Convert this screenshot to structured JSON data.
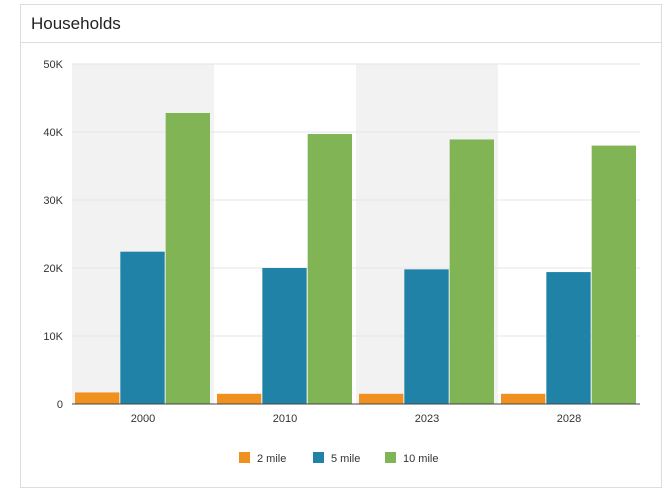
{
  "panel": {
    "title": "Households"
  },
  "chart_data": {
    "type": "bar",
    "categories": [
      "2000",
      "2010",
      "2023",
      "2028"
    ],
    "series": [
      {
        "name": "2 mile",
        "color": "#f0901e",
        "values": [
          1700,
          1500,
          1500,
          1500
        ]
      },
      {
        "name": "5 mile",
        "color": "#1f82a6",
        "values": [
          22400,
          20000,
          19800,
          19400
        ]
      },
      {
        "name": "10 mile",
        "color": "#80b454",
        "values": [
          42800,
          39700,
          38900,
          38000
        ]
      }
    ],
    "ylim": [
      0,
      50000
    ],
    "yticks": [
      0,
      10000,
      20000,
      30000,
      40000,
      50000
    ],
    "ytick_labels": [
      "0",
      "10K",
      "20K",
      "30K",
      "40K",
      "50K"
    ],
    "band_color": "#f2f2f2",
    "legend_position": "bottom-center",
    "grid": true
  }
}
